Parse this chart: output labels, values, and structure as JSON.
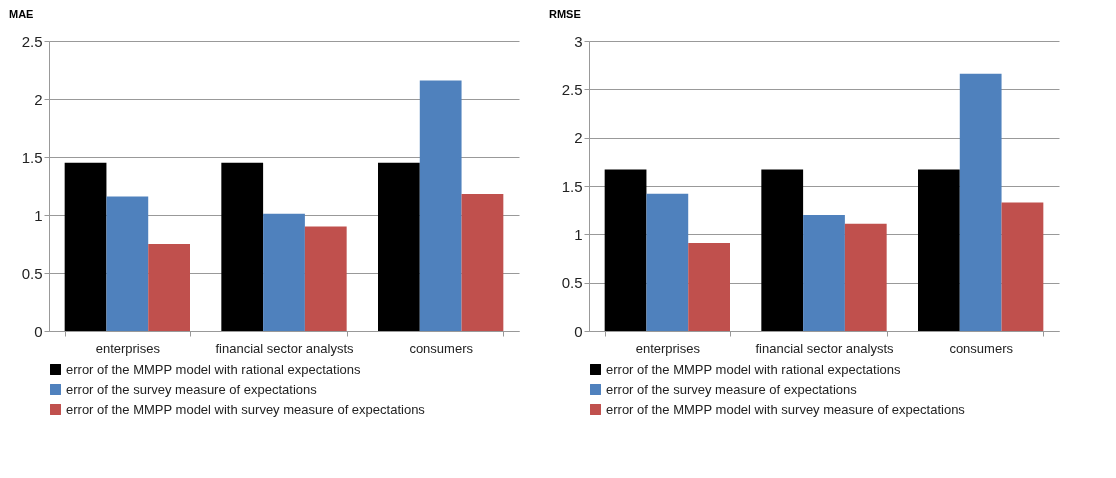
{
  "chart_data": [
    {
      "type": "bar",
      "title": "MAE",
      "categories": [
        "enterprises",
        "financial sector analysts",
        "consumers"
      ],
      "series": [
        {
          "name": "error of the MMPP model with rational expectations",
          "color": "#000000",
          "values": [
            1.45,
            1.45,
            1.45
          ]
        },
        {
          "name": "error of the survey measure of expectations",
          "color": "#4f81bd",
          "values": [
            1.16,
            1.01,
            2.16
          ]
        },
        {
          "name": "error of the MMPP model with survey measure of expectations",
          "color": "#c0504d",
          "values": [
            0.75,
            0.9,
            1.18
          ]
        }
      ],
      "ylim": [
        0,
        2.5
      ],
      "yticks": [
        0,
        0.5,
        1,
        1.5,
        2,
        2.5
      ],
      "grid": "y",
      "legend": "bottom"
    },
    {
      "type": "bar",
      "title": "RMSE",
      "categories": [
        "enterprises",
        "financial sector analysts",
        "consumers"
      ],
      "series": [
        {
          "name": "error of the MMPP model with rational expectations",
          "color": "#000000",
          "values": [
            1.67,
            1.67,
            1.67
          ]
        },
        {
          "name": "error of the survey measure of expectations",
          "color": "#4f81bd",
          "values": [
            1.42,
            1.2,
            2.66
          ]
        },
        {
          "name": "error of the MMPP model with survey measure of expectations",
          "color": "#c0504d",
          "values": [
            0.91,
            1.11,
            1.33
          ]
        }
      ],
      "ylim": [
        0,
        3
      ],
      "yticks": [
        0,
        0.5,
        1,
        1.5,
        2,
        2.5,
        3
      ],
      "grid": "y",
      "legend": "bottom"
    }
  ]
}
